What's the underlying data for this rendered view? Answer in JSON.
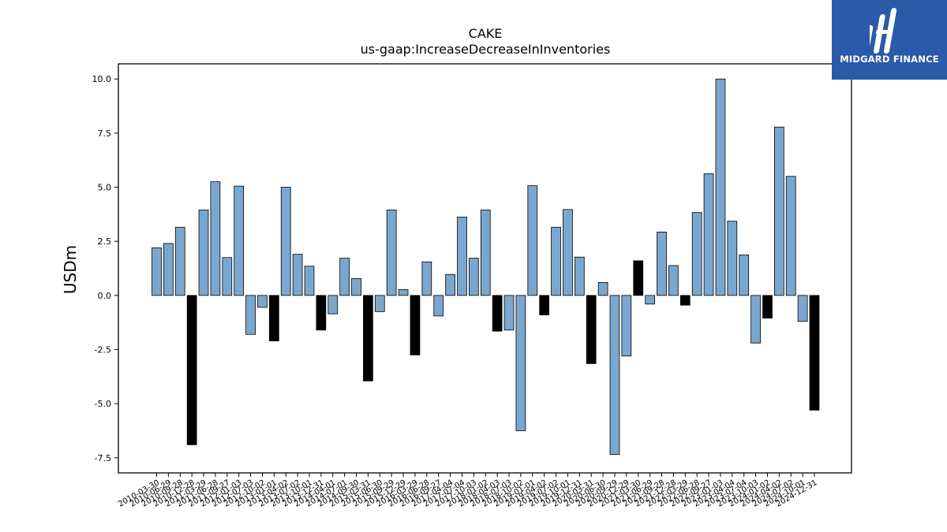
{
  "brand": {
    "name": "MIDGARD FINANCE",
    "logo_icon": "midgard-logo-icon",
    "background": "#2b5aa8"
  },
  "chart_data": {
    "type": "bar",
    "title": "CAKE",
    "subtitle": "us-gaap:IncreaseDecreaseInInventories",
    "ylabel": "USDm",
    "xlabel": "",
    "ylim": [
      -8.2,
      10.7
    ],
    "yticks": [
      -7.5,
      -5.0,
      -2.5,
      0.0,
      2.5,
      5.0,
      7.5,
      10.0
    ],
    "grid": false,
    "colors": {
      "positive_normal": "#7aa7cf",
      "highlight": "#000000",
      "edge": "#000000"
    },
    "categories": [
      "2010-03-30",
      "2010-06-29",
      "2010-09-28",
      "2010-12-28",
      "2011-03-29",
      "2011-06-28",
      "2011-09-27",
      "2012-01-03",
      "2012-07-03",
      "2012-10-02",
      "2013-01-01",
      "2013-04-02",
      "2013-07-02",
      "2013-10-01",
      "2013-12-31",
      "2014-04-01",
      "2014-07-01",
      "2014-09-30",
      "2015-03-31",
      "2015-06-30",
      "2015-09-29",
      "2015-12-29",
      "2016-03-29",
      "2016-06-28",
      "2016-09-27",
      "2017-04-04",
      "2017-07-04",
      "2017-10-03",
      "2018-01-02",
      "2018-04-03",
      "2018-07-03",
      "2018-10-02",
      "2019-01-01",
      "2019-04-02",
      "2019-07-02",
      "2019-10-01",
      "2019-12-31",
      "2020-03-31",
      "2020-06-30",
      "2020-09-29",
      "2020-12-29",
      "2021-03-30",
      "2021-06-29",
      "2021-09-28",
      "2021-12-28",
      "2022-03-29",
      "2022-06-28",
      "2022-09-27",
      "2023-01-03",
      "2023-04-04",
      "2023-07-04",
      "2023-10-03",
      "2024-01-02",
      "2024-04-02",
      "2024-07-02",
      "2024-10-01",
      "2024-12-31"
    ],
    "tick_labels": [
      "2010-03-30",
      "2010-06-29",
      "2010-09-28",
      "2010-12-28",
      "2011-03-29",
      "2011-06-28",
      "2011-09-27",
      "2012-01-03",
      "2012-07-03",
      "2012-10-02",
      "2013-01-01",
      "2013-04-02",
      "2013-07-02",
      "2013-10-01",
      "2013-12-31",
      "2014-04-01",
      "2014-07-01",
      "2014-09-30",
      "2015-03-31",
      "2015-06-30",
      "2015-09-29",
      "2015-12-29",
      "2016-03-29",
      "2016-06-28",
      "2016-09-27",
      "2017-04-04",
      "2017-07-04",
      "2017-10-03",
      "2018-01-02",
      "2018-04-03",
      "2018-07-03",
      "2018-10-02",
      "2019-01-01",
      "2019-04-02",
      "2019-07-02",
      "2019-10-01",
      "2019-12-31",
      "2020-03-31",
      "2020-06-30",
      "2020-09-29",
      "2020-12-29",
      "2021-03-30",
      "2021-06-29",
      "2021-09-28",
      "2021-12-28",
      "2022-03-29",
      "2022-06-28",
      "2022-09-27",
      "2023-01-03",
      "2023-04-04",
      "2023-07-04",
      "2023-10-03",
      "2024-01-02",
      "2024-04-02",
      "2024-07-02",
      "2024-10-01",
      "2024-12-31"
    ],
    "values": [
      2.2,
      2.4,
      3.15,
      -6.9,
      3.95,
      5.25,
      1.75,
      5.05,
      -1.8,
      -0.55,
      -2.1,
      5.0,
      1.9,
      1.35,
      -1.6,
      -0.85,
      1.72,
      0.78,
      -3.95,
      -0.75,
      3.95,
      0.27,
      -2.75,
      1.55,
      -0.95,
      0.97,
      3.62,
      1.72,
      3.95,
      -1.65,
      -1.6,
      -6.25,
      5.07,
      -0.9,
      3.15,
      3.97,
      1.77,
      -3.15,
      0.6,
      -7.35,
      -2.8,
      1.6,
      -0.4,
      2.93,
      1.38,
      -0.45,
      3.83,
      5.62,
      10.0,
      3.43,
      1.87,
      -2.2,
      -1.05,
      7.78,
      5.5,
      -1.2,
      -5.3
    ],
    "highlighted": [
      false,
      false,
      false,
      true,
      false,
      false,
      false,
      false,
      false,
      false,
      true,
      false,
      false,
      false,
      true,
      false,
      false,
      false,
      true,
      false,
      false,
      false,
      true,
      false,
      false,
      false,
      false,
      false,
      false,
      true,
      false,
      false,
      false,
      true,
      false,
      false,
      false,
      true,
      false,
      false,
      false,
      true,
      false,
      false,
      false,
      true,
      false,
      false,
      false,
      false,
      false,
      false,
      true,
      false,
      false,
      false,
      true
    ]
  }
}
